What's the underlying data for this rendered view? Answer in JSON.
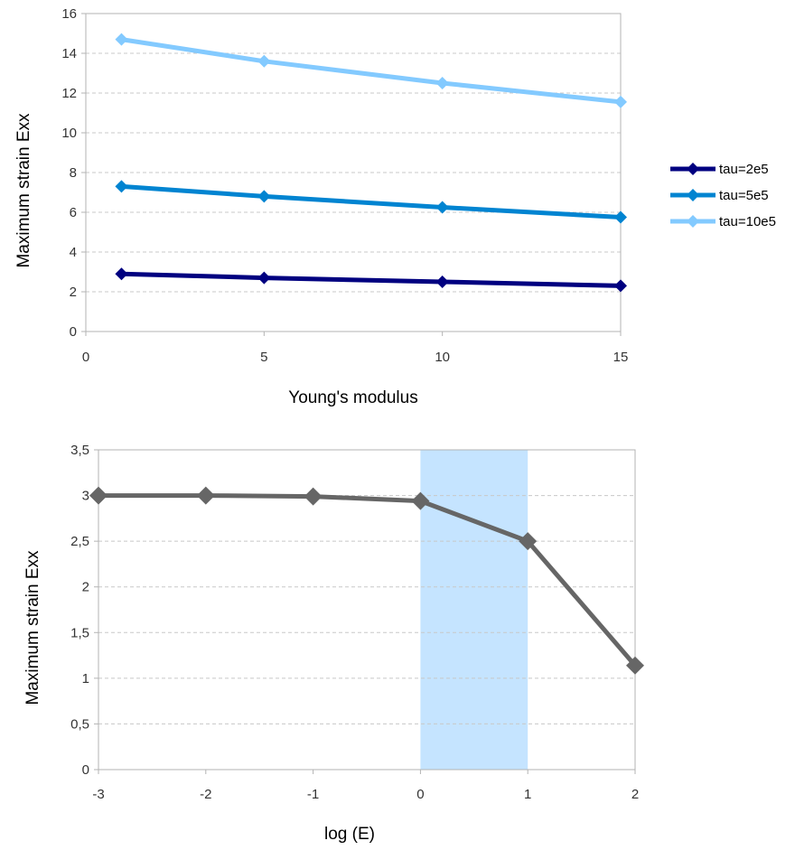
{
  "chart_data": [
    {
      "type": "line",
      "xlabel": "Young's modulus",
      "ylabel": "Maximum strain Exx",
      "xlim": [
        0,
        15
      ],
      "ylim": [
        0,
        16
      ],
      "xticks": [
        "0",
        "5",
        "10",
        "15"
      ],
      "yticks": [
        "0",
        "2",
        "4",
        "6",
        "8",
        "10",
        "12",
        "14",
        "16"
      ],
      "grid": true,
      "legend_position": "right",
      "series": [
        {
          "name": "tau=2e5",
          "color": "#000080",
          "x": [
            1,
            5,
            10,
            15
          ],
          "values": [
            2.9,
            2.7,
            2.5,
            2.3
          ]
        },
        {
          "name": "tau=5e5",
          "color": "#0084d1",
          "x": [
            1,
            5,
            10,
            15
          ],
          "values": [
            7.3,
            6.8,
            6.25,
            5.75
          ]
        },
        {
          "name": "tau=10e5",
          "color": "#83caff",
          "x": [
            1,
            5,
            10,
            15
          ],
          "values": [
            14.7,
            13.6,
            12.5,
            11.55
          ]
        }
      ]
    },
    {
      "type": "line",
      "xlabel": "log (E)",
      "ylabel": "Maximum strain Exx",
      "xlim": [
        -3,
        2
      ],
      "ylim": [
        0,
        3.5
      ],
      "xticks": [
        "-3",
        "-2",
        "-1",
        "0",
        "1",
        "2"
      ],
      "yticks": [
        "0",
        "0,5",
        "1",
        "1,5",
        "2",
        "2,5",
        "3",
        "3,5"
      ],
      "grid": true,
      "highlight_band": {
        "x_from": 0,
        "x_to": 1,
        "color": "#c5e4ff"
      },
      "series": [
        {
          "color": "#666666",
          "x": [
            -3,
            -2,
            -1,
            0,
            1,
            2
          ],
          "values": [
            3.0,
            3.0,
            2.99,
            2.94,
            2.5,
            1.14
          ]
        }
      ]
    }
  ]
}
